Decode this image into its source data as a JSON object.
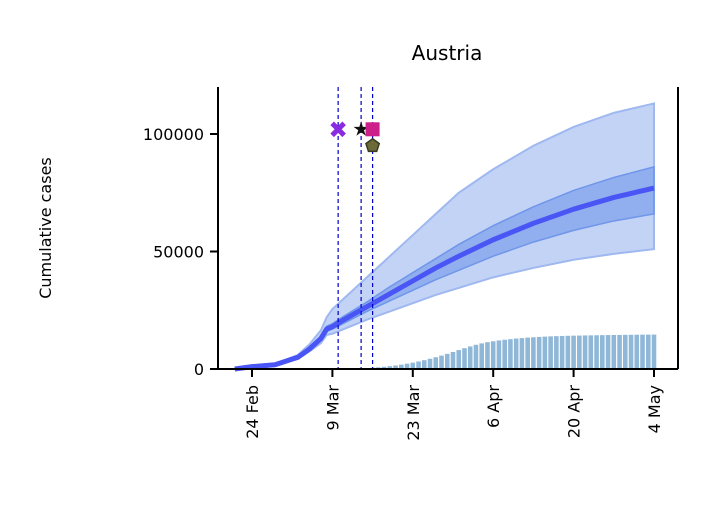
{
  "chart_data": {
    "type": "line",
    "title": "Austria",
    "xlabel": "",
    "ylabel": "Cumulative cases",
    "ylim": [
      0,
      120000
    ],
    "x_range_days": [
      -5,
      70
    ],
    "date_origin": "2020-02-24",
    "yticks": [
      {
        "value": 0,
        "label": "0"
      },
      {
        "value": 50000,
        "label": "50000"
      },
      {
        "value": 100000,
        "label": "100000"
      }
    ],
    "xticks": [
      {
        "day": 0,
        "label": "24 Feb"
      },
      {
        "day": 14,
        "label": "9 Mar"
      },
      {
        "day": 28,
        "label": "23 Mar"
      },
      {
        "day": 42,
        "label": "6 Apr"
      },
      {
        "day": 56,
        "label": "20 Apr"
      },
      {
        "day": 70,
        "label": "4 May"
      }
    ],
    "colors": {
      "median_line": "#4a55f5",
      "band_50": "#6f96ea",
      "band_95": "#aec4f3",
      "band_edge": "#9fb8f0",
      "bars": "#8fb7d8",
      "vline": "#0000cc"
    },
    "forecast": {
      "days": [
        -3,
        0,
        4,
        8,
        10,
        12,
        13,
        14,
        16,
        20,
        24,
        28,
        32,
        36,
        42,
        49,
        56,
        63,
        70
      ],
      "median": [
        0,
        1000,
        1800,
        5000,
        8500,
        13000,
        17000,
        18000,
        21000,
        26500,
        32000,
        37500,
        43000,
        48000,
        55000,
        62000,
        68000,
        73000,
        77000
      ],
      "p25": [
        0,
        1000,
        1700,
        4800,
        8200,
        12200,
        16000,
        17000,
        19500,
        24500,
        29000,
        33500,
        38000,
        42000,
        48000,
        54000,
        59000,
        63000,
        66000
      ],
      "p75": [
        0,
        1000,
        1900,
        5300,
        9000,
        13800,
        18200,
        19300,
        22500,
        28500,
        35000,
        41000,
        47000,
        53000,
        61000,
        69000,
        76000,
        81500,
        86000
      ],
      "p2_5": [
        0,
        1000,
        1500,
        4300,
        7500,
        11000,
        14500,
        15000,
        17000,
        21000,
        24500,
        28000,
        31500,
        34500,
        39000,
        43000,
        46500,
        49000,
        51000
      ],
      "p97_5": [
        0,
        1000,
        2100,
        6000,
        10500,
        16500,
        22000,
        25500,
        30000,
        39000,
        48000,
        57000,
        66000,
        75000,
        85000,
        95000,
        103000,
        109000,
        113000
      ]
    },
    "observed": {
      "start_day": 17,
      "values": [
        30,
        120,
        210,
        350,
        520,
        720,
        940,
        1200,
        1500,
        1850,
        2250,
        2700,
        3200,
        3750,
        4350,
        5000,
        5700,
        6450,
        7250,
        8050,
        8850,
        9600,
        10300,
        10900,
        11400,
        11800,
        12150,
        12450,
        12700,
        12950,
        13150,
        13350,
        13500,
        13650,
        13780,
        13880,
        13970,
        14050,
        14120,
        14180,
        14230,
        14280,
        14320,
        14360,
        14400,
        14440,
        14470,
        14500,
        14530,
        14560,
        14590,
        14610,
        14630,
        14650
      ]
    },
    "interventions": {
      "lines": [
        15,
        19,
        21
      ],
      "markers": [
        {
          "day": 15,
          "value": 102000,
          "shape": "x",
          "color": "#8a2be2"
        },
        {
          "day": 19,
          "value": 102000,
          "shape": "star",
          "color": "#111111"
        },
        {
          "day": 21,
          "value": 102000,
          "shape": "square",
          "color": "#cc1f8a"
        },
        {
          "day": 21,
          "value": 95000,
          "shape": "pentagon",
          "color": "#6b6b3a"
        }
      ]
    }
  }
}
